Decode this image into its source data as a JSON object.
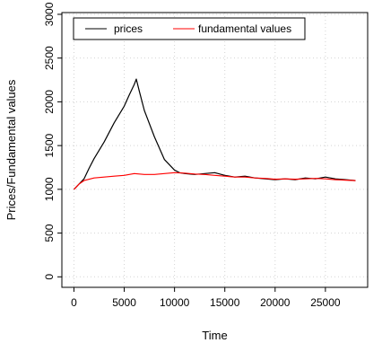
{
  "chart_data": {
    "type": "line",
    "title": "",
    "xlabel": "Time",
    "ylabel": "Prices/Fundamental values",
    "xlim": [
      -1200,
      29200
    ],
    "ylim": [
      -120,
      3020
    ],
    "x_ticks": [
      0,
      5000,
      10000,
      15000,
      20000,
      25000
    ],
    "y_ticks": [
      0,
      500,
      1000,
      1500,
      2000,
      2500,
      3000
    ],
    "x_tick_labels": [
      "0",
      "5000",
      "10000",
      "15000",
      "20000",
      "25000"
    ],
    "y_tick_labels": [
      "0",
      "500",
      "1000",
      "1500",
      "2000",
      "2500",
      "3000"
    ],
    "grid": true,
    "legend_position": "top-left",
    "series": [
      {
        "name": "prices",
        "color": "#000000",
        "x": [
          0,
          500,
          1000,
          1500,
          2000,
          3000,
          4000,
          5000,
          5500,
          6000,
          6200,
          6500,
          7000,
          8000,
          9000,
          10000,
          10500,
          11000,
          12000,
          13000,
          14000,
          15000,
          16000,
          17000,
          18000,
          19000,
          20000,
          21000,
          22000,
          23000,
          24000,
          25000,
          26000,
          27000,
          28000
        ],
        "y": [
          1000,
          1060,
          1120,
          1240,
          1350,
          1540,
          1760,
          1950,
          2080,
          2200,
          2260,
          2120,
          1900,
          1600,
          1340,
          1220,
          1190,
          1180,
          1170,
          1180,
          1190,
          1160,
          1140,
          1150,
          1130,
          1120,
          1110,
          1120,
          1110,
          1130,
          1120,
          1140,
          1120,
          1110,
          1100
        ]
      },
      {
        "name": "fundamental values",
        "color": "#ff0000",
        "x": [
          0,
          500,
          1000,
          2000,
          3000,
          4000,
          5000,
          6000,
          7000,
          8000,
          9000,
          10000,
          11000,
          12000,
          13000,
          14000,
          15000,
          16000,
          17000,
          18000,
          19000,
          20000,
          21000,
          22000,
          23000,
          24000,
          25000,
          26000,
          27000,
          28000
        ],
        "y": [
          1000,
          1060,
          1100,
          1130,
          1140,
          1150,
          1160,
          1180,
          1170,
          1170,
          1180,
          1190,
          1185,
          1175,
          1170,
          1160,
          1150,
          1140,
          1140,
          1130,
          1125,
          1115,
          1120,
          1115,
          1120,
          1125,
          1120,
          1110,
          1105,
          1100
        ]
      }
    ]
  }
}
